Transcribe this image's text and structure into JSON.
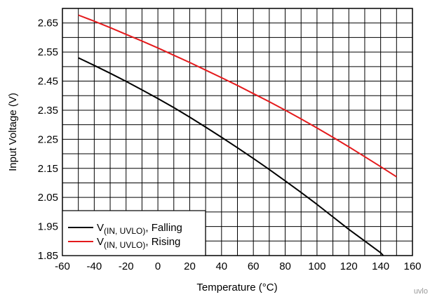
{
  "chart_data": {
    "type": "line",
    "xlabel": "Temperature (°C)",
    "ylabel": "Input Voltage (V)",
    "xlim": [
      -60,
      160
    ],
    "ylim": [
      1.85,
      2.7
    ],
    "x_ticks": [
      -60,
      -40,
      -20,
      0,
      20,
      40,
      60,
      80,
      100,
      120,
      140,
      160
    ],
    "x_tick_labels": [
      "-60",
      "-40",
      "-20",
      "0",
      "20",
      "40",
      "60",
      "80",
      "100",
      "120",
      "140",
      "160"
    ],
    "y_ticks": [
      1.85,
      1.95,
      2.05,
      2.15,
      2.25,
      2.35,
      2.45,
      2.55,
      2.65
    ],
    "y_tick_labels": [
      "1.85",
      "1.95",
      "2.05",
      "2.15",
      "2.25",
      "2.35",
      "2.45",
      "2.55",
      "2.65"
    ],
    "grid": true,
    "grid_minor_y_step": 0.05,
    "grid_x_step": 10,
    "legend_position": "bottom-left",
    "series": [
      {
        "name": "V(IN, UVLO), Falling",
        "legend_main": "V",
        "legend_sub": "(IN, UVLO)",
        "legend_tail": ", Falling",
        "color": "#000000",
        "x": [
          -50,
          -40,
          -30,
          -20,
          -10,
          0,
          10,
          20,
          30,
          40,
          50,
          60,
          70,
          80,
          90,
          100,
          110,
          120,
          130,
          140,
          145,
          150
        ],
        "y": [
          2.53,
          2.504,
          2.477,
          2.449,
          2.42,
          2.39,
          2.359,
          2.326,
          2.292,
          2.257,
          2.221,
          2.184,
          2.146,
          2.107,
          2.067,
          2.026,
          1.983,
          1.94,
          1.9,
          1.86,
          1.83,
          1.8
        ]
      },
      {
        "name": "V(IN, UVLO), Rising",
        "legend_main": "V",
        "legend_sub": "(IN, UVLO)",
        "legend_tail": ", Rising",
        "color": "#e41a1c",
        "x": [
          -50,
          -40,
          -30,
          -20,
          -10,
          0,
          10,
          20,
          30,
          40,
          50,
          60,
          70,
          80,
          90,
          100,
          110,
          120,
          130,
          140,
          150
        ],
        "y": [
          2.677,
          2.656,
          2.634,
          2.611,
          2.588,
          2.564,
          2.539,
          2.514,
          2.488,
          2.462,
          2.435,
          2.407,
          2.379,
          2.35,
          2.32,
          2.289,
          2.257,
          2.224,
          2.19,
          2.156,
          2.121
        ]
      }
    ]
  },
  "watermark": "uvlo"
}
